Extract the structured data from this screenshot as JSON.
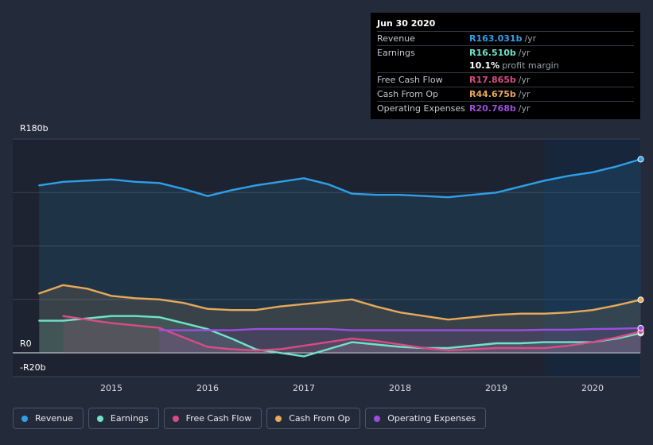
{
  "chart_data": {
    "type": "area",
    "y_unit": "R",
    "ylim": [
      -20,
      180
    ],
    "y_tick_labels": [
      {
        "value": 180,
        "label": "R180b"
      },
      {
        "value": 0,
        "label": "R0"
      },
      {
        "value": -20,
        "label": "-R20b"
      }
    ],
    "x_range": [
      2014.25,
      2020.5
    ],
    "x_ticks": [
      "2015",
      "2016",
      "2017",
      "2018",
      "2019",
      "2020"
    ],
    "forecast_start": 2019.5,
    "series": [
      {
        "name": "Revenue",
        "color": "#2f9fe8",
        "points": [
          [
            2014.25,
            141
          ],
          [
            2014.5,
            144
          ],
          [
            2014.75,
            145
          ],
          [
            2015.0,
            146
          ],
          [
            2015.25,
            144
          ],
          [
            2015.5,
            143
          ],
          [
            2015.75,
            138
          ],
          [
            2016.0,
            132
          ],
          [
            2016.25,
            137
          ],
          [
            2016.5,
            141
          ],
          [
            2016.75,
            144
          ],
          [
            2017.0,
            147
          ],
          [
            2017.25,
            142
          ],
          [
            2017.5,
            134
          ],
          [
            2017.75,
            133
          ],
          [
            2018.0,
            133
          ],
          [
            2018.25,
            132
          ],
          [
            2018.5,
            131
          ],
          [
            2018.75,
            133
          ],
          [
            2019.0,
            135
          ],
          [
            2019.25,
            140
          ],
          [
            2019.5,
            145
          ],
          [
            2019.75,
            149
          ],
          [
            2020.0,
            152
          ],
          [
            2020.25,
            157
          ],
          [
            2020.5,
            163
          ]
        ]
      },
      {
        "name": "Earnings",
        "color": "#6fe3c8",
        "points": [
          [
            2014.25,
            27
          ],
          [
            2014.5,
            27
          ],
          [
            2014.75,
            29
          ],
          [
            2015.0,
            31
          ],
          [
            2015.25,
            31
          ],
          [
            2015.5,
            30
          ],
          [
            2015.75,
            25
          ],
          [
            2016.0,
            20
          ],
          [
            2016.25,
            12
          ],
          [
            2016.5,
            3
          ],
          [
            2016.75,
            0
          ],
          [
            2017.0,
            -3
          ],
          [
            2017.25,
            3
          ],
          [
            2017.5,
            9
          ],
          [
            2017.75,
            7
          ],
          [
            2018.0,
            5
          ],
          [
            2018.25,
            4
          ],
          [
            2018.5,
            4
          ],
          [
            2018.75,
            6
          ],
          [
            2019.0,
            8
          ],
          [
            2019.25,
            8
          ],
          [
            2019.5,
            9
          ],
          [
            2019.75,
            9
          ],
          [
            2020.0,
            9
          ],
          [
            2020.25,
            12
          ],
          [
            2020.5,
            16.5
          ]
        ]
      },
      {
        "name": "Free Cash Flow",
        "color": "#d94b86",
        "points": [
          [
            2014.5,
            31
          ],
          [
            2014.75,
            28
          ],
          [
            2015.0,
            25
          ],
          [
            2015.25,
            23
          ],
          [
            2015.5,
            21
          ],
          [
            2015.75,
            13
          ],
          [
            2016.0,
            5
          ],
          [
            2016.25,
            3
          ],
          [
            2016.5,
            2
          ],
          [
            2016.75,
            3
          ],
          [
            2017.0,
            6
          ],
          [
            2017.25,
            9
          ],
          [
            2017.5,
            12
          ],
          [
            2017.75,
            10
          ],
          [
            2018.0,
            7
          ],
          [
            2018.25,
            4
          ],
          [
            2018.5,
            2
          ],
          [
            2018.75,
            3
          ],
          [
            2019.0,
            4
          ],
          [
            2019.25,
            4
          ],
          [
            2019.5,
            4
          ],
          [
            2019.75,
            6
          ],
          [
            2020.0,
            9
          ],
          [
            2020.25,
            13
          ],
          [
            2020.5,
            17.9
          ]
        ]
      },
      {
        "name": "Cash From Op",
        "color": "#e8a95a",
        "points": [
          [
            2014.25,
            50
          ],
          [
            2014.5,
            57
          ],
          [
            2014.75,
            54
          ],
          [
            2015.0,
            48
          ],
          [
            2015.25,
            46
          ],
          [
            2015.5,
            45
          ],
          [
            2015.75,
            42
          ],
          [
            2016.0,
            37
          ],
          [
            2016.25,
            36
          ],
          [
            2016.5,
            36
          ],
          [
            2016.75,
            39
          ],
          [
            2017.0,
            41
          ],
          [
            2017.25,
            43
          ],
          [
            2017.5,
            45
          ],
          [
            2017.75,
            39
          ],
          [
            2018.0,
            34
          ],
          [
            2018.25,
            31
          ],
          [
            2018.5,
            28
          ],
          [
            2018.75,
            30
          ],
          [
            2019.0,
            32
          ],
          [
            2019.25,
            33
          ],
          [
            2019.5,
            33
          ],
          [
            2019.75,
            34
          ],
          [
            2020.0,
            36
          ],
          [
            2020.25,
            40
          ],
          [
            2020.5,
            44.7
          ]
        ]
      },
      {
        "name": "Operating Expenses",
        "color": "#9b4ee0",
        "points": [
          [
            2015.5,
            19
          ],
          [
            2015.75,
            19
          ],
          [
            2016.0,
            19
          ],
          [
            2016.25,
            19
          ],
          [
            2016.5,
            20
          ],
          [
            2016.75,
            20
          ],
          [
            2017.0,
            20
          ],
          [
            2017.25,
            20
          ],
          [
            2017.5,
            19
          ],
          [
            2017.75,
            19
          ],
          [
            2018.0,
            19
          ],
          [
            2018.25,
            19
          ],
          [
            2018.5,
            19
          ],
          [
            2018.75,
            19
          ],
          [
            2019.0,
            19
          ],
          [
            2019.25,
            19
          ],
          [
            2019.5,
            19.5
          ],
          [
            2019.75,
            19.5
          ],
          [
            2020.0,
            20
          ],
          [
            2020.25,
            20.3
          ],
          [
            2020.5,
            20.8
          ]
        ]
      }
    ]
  },
  "tooltip": {
    "date": "Jun 30 2020",
    "rows": [
      {
        "label": "Revenue",
        "value": "R163.031b",
        "unit": "/yr",
        "color": "#2f9fe8"
      },
      {
        "label": "Earnings",
        "value": "R16.510b",
        "unit": "/yr",
        "color": "#6fe3c8"
      },
      {
        "label": "",
        "value": "10.1%",
        "unit": "profit margin",
        "color": "#ffffff",
        "plain": true
      },
      {
        "label": "Free Cash Flow",
        "value": "R17.865b",
        "unit": "/yr",
        "color": "#d94b86"
      },
      {
        "label": "Cash From Op",
        "value": "R44.675b",
        "unit": "/yr",
        "color": "#e8a95a"
      },
      {
        "label": "Operating Expenses",
        "value": "R20.768b",
        "unit": "/yr",
        "color": "#9b4ee0"
      }
    ]
  },
  "legend": [
    {
      "label": "Revenue",
      "color": "#2f9fe8"
    },
    {
      "label": "Earnings",
      "color": "#6fe3c8"
    },
    {
      "label": "Free Cash Flow",
      "color": "#d94b86"
    },
    {
      "label": "Cash From Op",
      "color": "#e8a95a"
    },
    {
      "label": "Operating Expenses",
      "color": "#9b4ee0"
    }
  ]
}
